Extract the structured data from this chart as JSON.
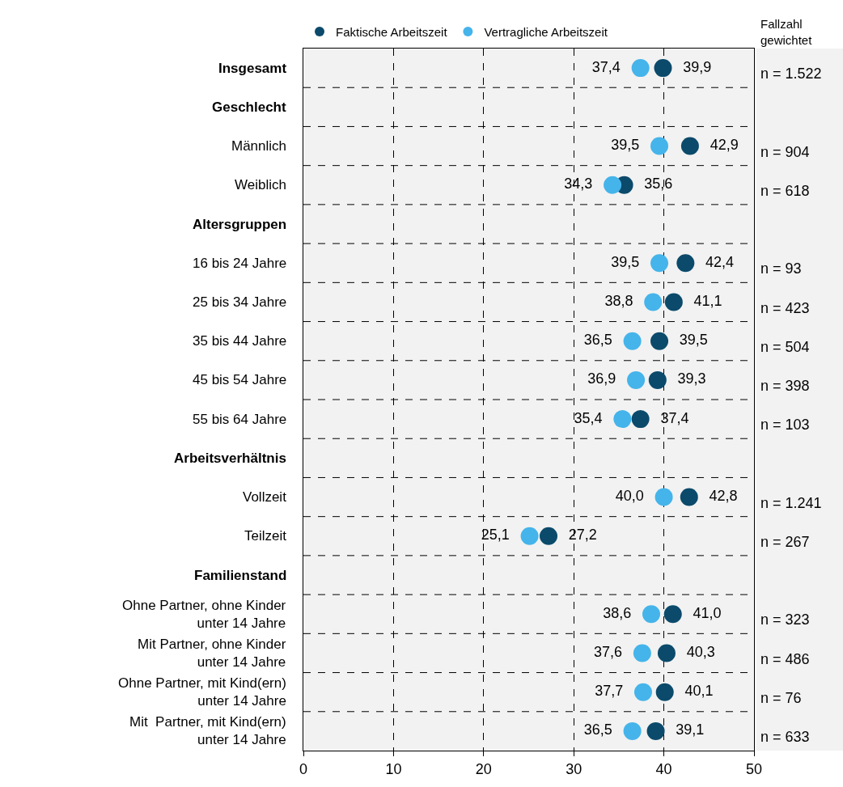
{
  "chart_data": {
    "type": "scatter",
    "orientation": "horizontal",
    "categories": [
      "Insgesamt",
      "Geschlecht",
      "Männlich",
      "Weiblich",
      "Altersgruppen",
      "16 bis 24 Jahre",
      "25 bis 34 Jahre",
      "35 bis 44 Jahre",
      "45 bis 54 Jahre",
      "55 bis 64 Jahre",
      "Arbeitsverhältnis",
      "Vollzeit",
      "Teilzeit",
      "Familienstand",
      "Ohne Partner, ohne Kinder\nunter 14 Jahre",
      "Mit Partner, ohne Kinder\nunter 14 Jahre",
      "Ohne Partner, mit Kind(ern)\nunter 14 Jahre",
      "Mit  Partner, mit Kind(ern)\nunter 14 Jahre"
    ],
    "series": [
      {
        "name": "Faktische Arbeitszeit",
        "color": "#0b4a6b",
        "values": [
          39.9,
          null,
          42.9,
          35.6,
          null,
          42.4,
          41.1,
          39.5,
          39.3,
          37.4,
          null,
          42.8,
          27.2,
          null,
          41.0,
          40.3,
          40.1,
          39.1
        ],
        "value_labels": [
          "39,9",
          null,
          "42,9",
          "35,6",
          null,
          "42,4",
          "41,1",
          "39,5",
          "39,3",
          "37,4",
          null,
          "42,8",
          "27,2",
          null,
          "41,0",
          "40,3",
          "40,1",
          "39,1"
        ]
      },
      {
        "name": "Vertragliche Arbeitszeit",
        "color": "#45b4ea",
        "values": [
          37.4,
          null,
          39.5,
          34.3,
          null,
          39.5,
          38.8,
          36.5,
          36.9,
          35.4,
          null,
          40.0,
          25.1,
          null,
          38.6,
          37.6,
          37.7,
          36.5
        ],
        "value_labels": [
          "37,4",
          null,
          "39,5",
          "34,3",
          null,
          "39,5",
          "38,8",
          "36,5",
          "36,9",
          "35,4",
          null,
          "40,0",
          "25,1",
          null,
          "38,6",
          "37,6",
          "37,7",
          "36,5"
        ]
      }
    ],
    "xlim": [
      0,
      50
    ],
    "xticks": [
      0,
      10,
      20,
      30,
      40,
      50
    ],
    "grid": true,
    "legend": "top",
    "marker": "circle",
    "annotations": [
      "Fallzahl\ngewichtet",
      "n = 1.522",
      "n = 904",
      "n = 618",
      "n = 93",
      "n = 423",
      "n = 504",
      "n = 398",
      "n = 103",
      "n = 1.241",
      "n = 267",
      "n = 323",
      "n = 486",
      "n = 76",
      "n = 633"
    ]
  }
}
